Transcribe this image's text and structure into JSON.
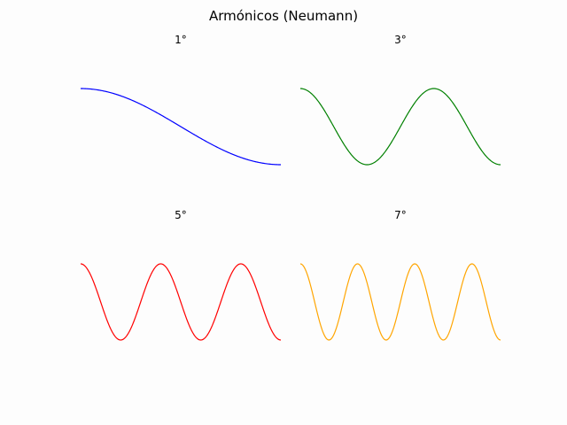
{
  "title": "Armónicos (Neumann)",
  "chart_data": [
    {
      "type": "line",
      "title": "1°",
      "harmonic": 1,
      "function": "cos(1·π·x/L)",
      "x": [
        0,
        0.25,
        0.5,
        0.75,
        1
      ],
      "values": [
        1,
        0.7071,
        0,
        -0.7071,
        -1
      ],
      "xlim": [
        0,
        1
      ],
      "ylim": [
        -1,
        1
      ],
      "axes_visible": false,
      "grid": false,
      "color": "#0000ff"
    },
    {
      "type": "line",
      "title": "3°",
      "harmonic": 3,
      "function": "cos(3·π·x/L)",
      "x": [
        0,
        0.3333,
        0.6667,
        1
      ],
      "values": [
        1,
        -1,
        1,
        -1
      ],
      "xlim": [
        0,
        1
      ],
      "ylim": [
        -1,
        1
      ],
      "axes_visible": false,
      "grid": false,
      "color": "#008000"
    },
    {
      "type": "line",
      "title": "5°",
      "harmonic": 5,
      "function": "cos(5·π·x/L)",
      "x": [
        0,
        0.2,
        0.4,
        0.6,
        0.8,
        1
      ],
      "values": [
        1,
        -1,
        1,
        -1,
        1,
        -1
      ],
      "xlim": [
        0,
        1
      ],
      "ylim": [
        -1,
        1
      ],
      "axes_visible": false,
      "grid": false,
      "color": "#ff0000"
    },
    {
      "type": "line",
      "title": "7°",
      "harmonic": 7,
      "function": "cos(7·π·x/L)",
      "x": [
        0,
        0.1429,
        0.2857,
        0.4286,
        0.5714,
        0.7143,
        0.8571,
        1
      ],
      "values": [
        1,
        -1,
        1,
        -1,
        1,
        -1,
        1,
        -1
      ],
      "xlim": [
        0,
        1
      ],
      "ylim": [
        -1,
        1
      ],
      "axes_visible": false,
      "grid": false,
      "color": "#ffa500"
    }
  ]
}
